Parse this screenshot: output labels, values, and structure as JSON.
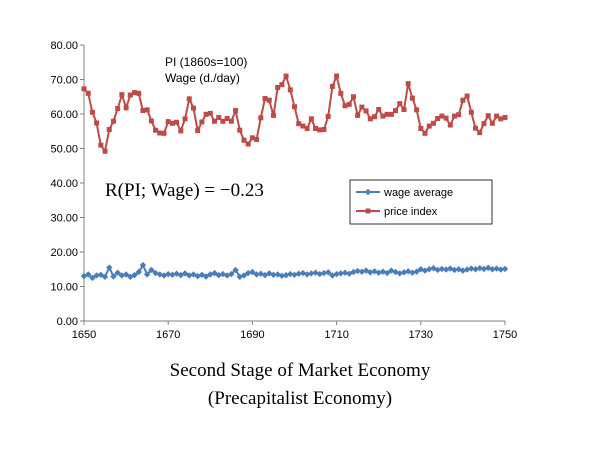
{
  "chart_data": {
    "type": "line",
    "xlim": [
      1650,
      1750
    ],
    "ylim": [
      0,
      80
    ],
    "x_ticks": [
      "1650",
      "1670",
      "1690",
      "1710",
      "1730",
      "1750"
    ],
    "y_ticks": [
      "0.00",
      "10.00",
      "20.00",
      "30.00",
      "40.00",
      "50.00",
      "60.00",
      "70.00",
      "80.00"
    ],
    "grid": false,
    "legend_position": "right-middle",
    "annotation_line1": "PI (1860s=100)",
    "annotation_line2": "Wage (d./day)",
    "formula": "R(PI; Wage) = −0.23",
    "series": [
      {
        "name": "wage average",
        "color": "#4a7ebb",
        "marker": "diamond",
        "x": [
          1650,
          1651,
          1652,
          1653,
          1654,
          1655,
          1656,
          1657,
          1658,
          1659,
          1660,
          1661,
          1662,
          1663,
          1664,
          1665,
          1666,
          1667,
          1668,
          1669,
          1670,
          1671,
          1672,
          1673,
          1674,
          1675,
          1676,
          1677,
          1678,
          1679,
          1680,
          1681,
          1682,
          1683,
          1684,
          1685,
          1686,
          1687,
          1688,
          1689,
          1690,
          1691,
          1692,
          1693,
          1694,
          1695,
          1696,
          1697,
          1698,
          1699,
          1700,
          1701,
          1702,
          1703,
          1704,
          1705,
          1706,
          1707,
          1708,
          1709,
          1710,
          1711,
          1712,
          1713,
          1714,
          1715,
          1716,
          1717,
          1718,
          1719,
          1720,
          1721,
          1722,
          1723,
          1724,
          1725,
          1726,
          1727,
          1728,
          1729,
          1730,
          1731,
          1732,
          1733,
          1734,
          1735,
          1736,
          1737,
          1738,
          1739,
          1740,
          1741,
          1742,
          1743,
          1744,
          1745,
          1746,
          1747,
          1748,
          1749,
          1750
        ],
        "values": [
          13.0,
          13.5,
          12.5,
          13.2,
          13.4,
          12.8,
          15.5,
          12.9,
          14.0,
          13.2,
          13.5,
          12.8,
          13.3,
          14.2,
          16.2,
          13.5,
          14.8,
          13.9,
          13.5,
          13.2,
          13.6,
          13.4,
          13.7,
          13.3,
          13.8,
          13.2,
          13.5,
          13.0,
          13.4,
          12.9,
          13.5,
          13.9,
          13.3,
          13.6,
          13.2,
          13.6,
          14.8,
          12.8,
          13.2,
          13.9,
          14.2,
          13.5,
          13.7,
          13.3,
          13.8,
          13.4,
          13.5,
          13.1,
          13.3,
          13.6,
          13.4,
          13.7,
          13.9,
          13.5,
          13.8,
          14.0,
          13.6,
          13.9,
          14.1,
          13.2,
          13.6,
          13.8,
          14.0,
          13.7,
          14.2,
          14.5,
          14.3,
          14.6,
          14.1,
          14.4,
          14.0,
          14.3,
          13.9,
          14.6,
          14.2,
          13.8,
          14.1,
          14.4,
          14.0,
          14.3,
          15.0,
          14.6,
          15.0,
          15.3,
          14.8,
          15.1,
          14.9,
          15.2,
          14.8,
          15.0,
          14.6,
          14.9,
          15.2,
          15.0,
          15.3,
          15.1,
          15.4,
          15.0,
          15.2,
          14.9,
          15.1
        ]
      },
      {
        "name": "price index",
        "color": "#be4b48",
        "marker": "square",
        "x": [
          1650,
          1651,
          1652,
          1653,
          1654,
          1655,
          1656,
          1657,
          1658,
          1659,
          1660,
          1661,
          1662,
          1663,
          1664,
          1665,
          1666,
          1667,
          1668,
          1669,
          1670,
          1671,
          1672,
          1673,
          1674,
          1675,
          1676,
          1677,
          1678,
          1679,
          1680,
          1681,
          1682,
          1683,
          1684,
          1685,
          1686,
          1687,
          1688,
          1689,
          1690,
          1691,
          1692,
          1693,
          1694,
          1695,
          1696,
          1697,
          1698,
          1699,
          1700,
          1701,
          1702,
          1703,
          1704,
          1705,
          1706,
          1707,
          1708,
          1709,
          1710,
          1711,
          1712,
          1713,
          1714,
          1715,
          1716,
          1717,
          1718,
          1719,
          1720,
          1721,
          1722,
          1723,
          1724,
          1725,
          1726,
          1727,
          1728,
          1729,
          1730,
          1731,
          1732,
          1733,
          1734,
          1735,
          1736,
          1737,
          1738,
          1739,
          1740,
          1741,
          1742,
          1743,
          1744,
          1745,
          1746,
          1747,
          1748,
          1749,
          1750
        ],
        "values": [
          67.3,
          66.0,
          60.5,
          57.4,
          51.0,
          49.2,
          55.5,
          57.9,
          61.6,
          65.6,
          61.8,
          65.5,
          66.2,
          66.0,
          61.0,
          61.2,
          58.0,
          55.3,
          54.5,
          54.4,
          57.8,
          57.3,
          57.6,
          55.1,
          58.6,
          64.4,
          61.7,
          55.2,
          57.7,
          59.9,
          60.2,
          57.9,
          59.0,
          57.9,
          58.7,
          57.9,
          61.0,
          55.3,
          52.4,
          51.3,
          53.1,
          52.6,
          58.9,
          64.5,
          64.0,
          59.6,
          67.7,
          68.5,
          71.0,
          67.0,
          62.1,
          57.2,
          56.5,
          55.8,
          58.6,
          55.8,
          55.4,
          55.5,
          59.3,
          68.0,
          71.0,
          66.0,
          62.4,
          62.8,
          65.0,
          59.6,
          62.0,
          60.9,
          58.6,
          59.2,
          61.3,
          59.4,
          59.9,
          59.9,
          61.0,
          63.0,
          61.3,
          68.8,
          64.6,
          61.2,
          55.8,
          54.4,
          56.5,
          57.3,
          58.7,
          59.4,
          58.8,
          56.8,
          59.4,
          59.8,
          64.0,
          65.2,
          60.5,
          55.9,
          54.6,
          57.2,
          59.5,
          57.3,
          59.4,
          58.6,
          59.0
        ]
      }
    ]
  },
  "caption": {
    "line1": "Second Stage of Market Economy",
    "line2": "(Precapitalist Economy)"
  }
}
